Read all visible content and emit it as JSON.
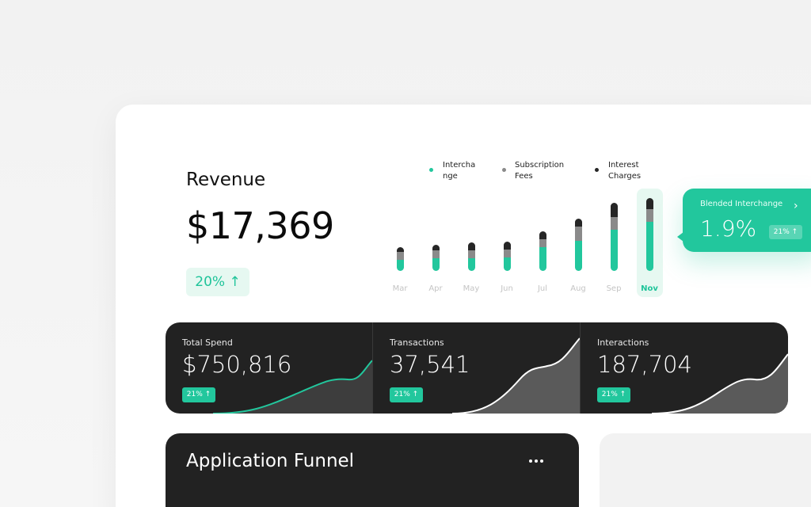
{
  "revenue": {
    "title": "Revenue",
    "value": "$17,369",
    "change": "20% ↑"
  },
  "legend": [
    {
      "line1": "Intercha",
      "line2": "nge",
      "color": "#22c79d"
    },
    {
      "line1": "Subscription",
      "line2": "Fees",
      "color": "#8a8a8a"
    },
    {
      "line1": "Interest",
      "line2": "Charges",
      "color": "#262626"
    }
  ],
  "chart_data": {
    "type": "bar",
    "stacked": true,
    "categories": [
      "Mar",
      "Apr",
      "May",
      "Jun",
      "Jul",
      "Aug",
      "Sep",
      "Nov"
    ],
    "highlighted": "Nov",
    "series": [
      {
        "name": "Interchange",
        "values": [
          14,
          16,
          16,
          17,
          30,
          38,
          52,
          62
        ]
      },
      {
        "name": "Subscription Fees",
        "values": [
          10,
          10,
          10,
          10,
          10,
          18,
          16,
          16
        ]
      },
      {
        "name": "Interest Charges",
        "values": [
          6,
          7,
          10,
          10,
          10,
          10,
          18,
          14
        ]
      }
    ],
    "ylim": [
      0,
      100
    ],
    "grid": false,
    "legend": "top"
  },
  "tooltip": {
    "title": "Blended Interchange",
    "value": "1.9%",
    "change": "21% ↑"
  },
  "stats": [
    {
      "label": "Total Spend",
      "value": "$750,816",
      "change": "21% ↑",
      "accent": "#22c79d"
    },
    {
      "label": "Transactions",
      "value": "37,541",
      "change": "21% ↑",
      "accent": "#ffffff"
    },
    {
      "label": "Interactions",
      "value": "187,704",
      "change": "21% ↑",
      "accent": "#ffffff"
    }
  ],
  "funnel": {
    "title": "Application Funnel"
  },
  "icons": {
    "tooltip_arrow": "chevron-right-icon",
    "more": "more-horizontal-icon"
  }
}
